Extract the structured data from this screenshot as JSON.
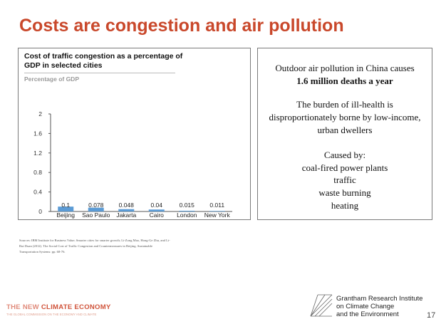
{
  "slide": {
    "title": "Costs are congestion and air pollution",
    "page_number": "17"
  },
  "chart_data": {
    "type": "bar",
    "title": "Cost of traffic congestion as a percentage of GDP in selected cities",
    "subtitle": "Percentage of GDP",
    "categories": [
      "Beijing",
      "Sao Paulo",
      "Jakarta",
      "Cairo",
      "London",
      "New York"
    ],
    "values": [
      0.1,
      0.078,
      0.048,
      0.04,
      0.015,
      0.011
    ],
    "value_labels": [
      "0.1",
      "0.078",
      "0.048",
      "0.04",
      "0.015",
      "0.011"
    ],
    "ylim": [
      0,
      2
    ],
    "yticks": [
      "0",
      "0.4",
      "0.8",
      "1.2",
      "1.6",
      "2"
    ],
    "ytick_values": [
      0,
      0.4,
      0.8,
      1.2,
      1.6,
      2
    ],
    "bar_color": "#5b9bd5",
    "grid": false
  },
  "text_panel": {
    "line1": "Outdoor air pollution in China causes",
    "line2": "1.6 million deaths a year",
    "line3": "The burden of ill-health is",
    "line4": "disproportionately borne by low-income,",
    "line5": "urban dwellers",
    "line6": "Caused by:",
    "line7": "coal-fired power plants",
    "line8": "traffic",
    "line9": "waste burning",
    "line10": "heating"
  },
  "sources": {
    "line1": "Sources: IBM Institute for Business Value; Smarter cities for smarter growth; Li-Zong Mao, Hong-Ge Zhu, and Li-",
    "line2": "Rui Duan (2012). The Social Cost of Traffic Congestion and Countermeasures in Beijing. Sustainable",
    "line3": "Transportation Systems: pp. 68-76."
  },
  "footer": {
    "nce_part1": "THE NEW ",
    "nce_part2": "CLIMATE ECONOMY",
    "nce_sub": "THE GLOBAL COMMISSION ON THE ECONOMY AND CLIMATE",
    "grantham_line1": "Grantham Research Institute",
    "grantham_line2": "on Climate Change",
    "grantham_line3": "and the Environment"
  },
  "colors": {
    "title": "#c9482b",
    "bars": "#5b9bd5",
    "nce_light": "#e08a7a",
    "nce_dark": "#d0533a"
  }
}
